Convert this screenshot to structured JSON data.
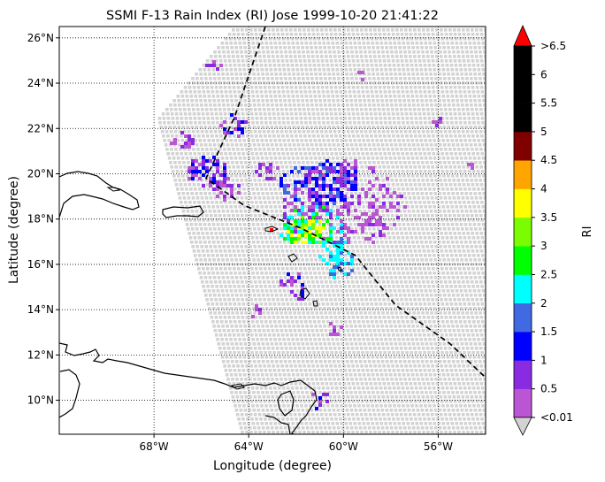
{
  "title": "SSMI F-13 Rain Index (RI) Jose 1999-10-20 21:41:22",
  "xlabel": "Longitude (degree)",
  "ylabel": "Latitude (degree)",
  "map": {
    "lon_range": [
      -72,
      -54
    ],
    "lat_range": [
      8.5,
      26.5
    ],
    "lon_ticks": [
      "68°W",
      "64°W",
      "60°W",
      "56°W"
    ],
    "lon_tick_values": [
      -68,
      -64,
      -60,
      -56
    ],
    "lat_ticks": [
      "10°N",
      "12°N",
      "14°N",
      "16°N",
      "18°N",
      "20°N",
      "22°N",
      "24°N",
      "26°N"
    ],
    "lat_tick_values": [
      10,
      12,
      14,
      16,
      18,
      20,
      22,
      24,
      26
    ],
    "grid": "dotted",
    "swath_color": "#d3d3d3",
    "coast_color": "#000000"
  },
  "track": {
    "style": "dashed",
    "color": "#000000",
    "points": [
      [
        -63.3,
        26.5
      ],
      [
        -64.6,
        22.5
      ],
      [
        -65.8,
        19.8
      ],
      [
        -64.2,
        18.6
      ],
      [
        -61.8,
        17.6
      ],
      [
        -59.5,
        16.4
      ],
      [
        -57.8,
        14.2
      ],
      [
        -55.5,
        12.5
      ],
      [
        -54.0,
        11.0
      ]
    ]
  },
  "colorbar": {
    "label": "RI",
    "levels": [
      "<0.01",
      "0.5",
      "1",
      "1.5",
      "2",
      "2.5",
      "3",
      "3.5",
      "4",
      "4.5",
      "5",
      "5.5",
      "6",
      ">6.5"
    ],
    "colors": [
      "#ba55d3",
      "#8a2be2",
      "#0000ff",
      "#4169e1",
      "#00ffff",
      "#00ff00",
      "#7cfc00",
      "#ffff00",
      "#ffa500",
      "#800000",
      "#000000",
      "#000000",
      "#000000"
    ],
    "under_color": "#d3d3d3",
    "over_color": "#ff0000"
  }
}
